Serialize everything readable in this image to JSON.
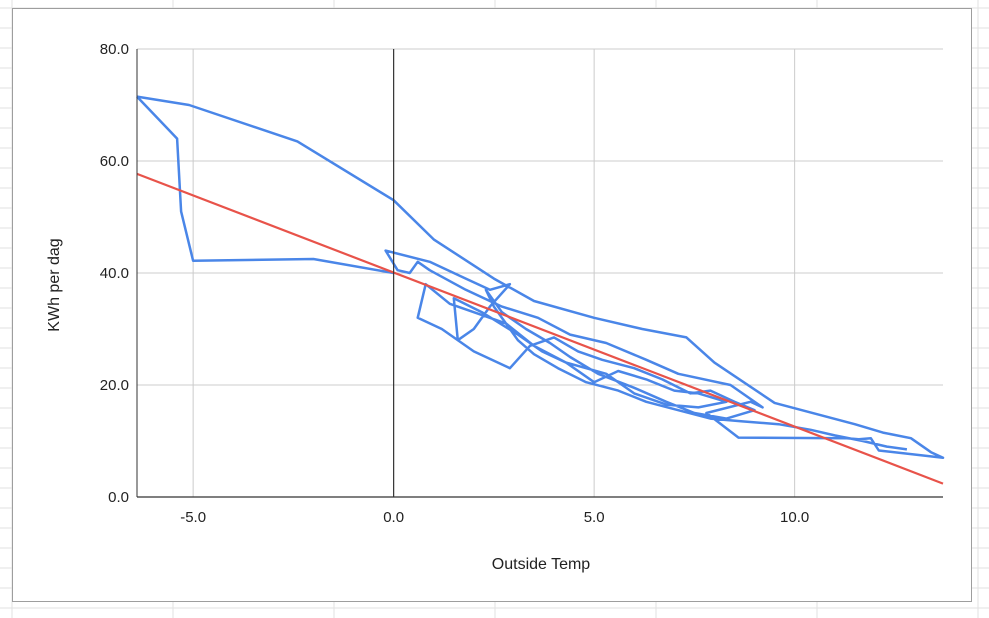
{
  "chart_data": {
    "type": "line",
    "title": "",
    "xlabel": "Outside Temp",
    "ylabel": "KWh per dag",
    "xlim": [
      -6.4,
      13.7
    ],
    "ylim": [
      0,
      80
    ],
    "xticks": [
      -5,
      0,
      5,
      10
    ],
    "yticks": [
      0,
      20,
      40,
      60,
      80
    ],
    "xtick_labels": [
      "-5.0",
      "0.0",
      "5.0",
      "10.0"
    ],
    "ytick_labels": [
      "0.0",
      "20.0",
      "40.0",
      "60.0",
      "80.0"
    ],
    "grid": true,
    "legend": "none",
    "series": [
      {
        "color": "#4a86e8",
        "x": [
          -6.4,
          -5.1,
          -2.4,
          0.0,
          1.0,
          2.5,
          3.5,
          5.0,
          6.2,
          7.3,
          8.0,
          9.5,
          11.5,
          12.2,
          12.9,
          13.4,
          13.7,
          12.1,
          11.9,
          11.6,
          11.3,
          8.6,
          7.8,
          8.9,
          9.2,
          8.4,
          7.1,
          6.3,
          5.3,
          4.4,
          3.6,
          2.7,
          1.8,
          0.9,
          0.6,
          0.4,
          0.1,
          -0.2,
          0.9,
          1.8,
          2.4,
          2.9,
          2.4,
          2.0,
          1.6,
          1.5,
          2.2,
          3.1,
          3.7,
          4.3,
          5.0,
          5.6,
          6.3,
          7.0,
          7.6,
          8.3,
          7.6,
          6.8,
          6.0,
          5.3,
          4.3,
          3.5,
          2.8,
          2.0,
          1.4,
          0.8,
          0.6,
          1.2,
          2.0,
          2.9,
          3.4,
          4.0,
          4.6,
          5.2,
          6.0,
          6.7,
          7.4,
          7.9,
          8.5,
          9.0,
          8.3,
          7.5,
          6.8,
          6.0,
          5.1,
          4.4,
          3.9,
          3.3,
          2.7,
          2.3,
          2.5,
          2.8,
          3.1,
          3.5,
          4.1,
          4.8,
          5.6,
          6.3,
          7.1,
          7.9,
          8.7,
          9.6,
          10.4,
          11.0,
          11.7,
          12.3,
          12.8
        ],
        "y": [
          71.5,
          70.0,
          63.5,
          53.0,
          46.0,
          39.0,
          35.0,
          32.0,
          30.0,
          28.5,
          24.0,
          16.8,
          13.0,
          11.5,
          10.5,
          8.0,
          7.0,
          8.3,
          10.5,
          10.3,
          10.5,
          10.6,
          15.0,
          17.0,
          16.0,
          20.0,
          22.0,
          24.5,
          27.5,
          29.0,
          32.0,
          34.0,
          37.0,
          40.5,
          42.0,
          40.0,
          40.5,
          44.0,
          42.0,
          39.0,
          37.0,
          38.0,
          34.0,
          30.0,
          28.0,
          35.5,
          33.0,
          29.0,
          26.0,
          24.0,
          20.5,
          22.5,
          21.0,
          19.0,
          18.5,
          17.0,
          16.0,
          16.5,
          18.5,
          22.0,
          24.0,
          27.0,
          31.0,
          33.0,
          34.5,
          38.0,
          32.0,
          30.0,
          26.0,
          23.0,
          27.0,
          28.5,
          26.0,
          24.5,
          23.0,
          21.0,
          18.5,
          19.0,
          17.0,
          15.5,
          14.0,
          15.0,
          17.0,
          19.5,
          22.0,
          25.0,
          27.5,
          30.0,
          33.0,
          37.0,
          34.0,
          31.0,
          28.0,
          25.5,
          23.0,
          20.5,
          19.0,
          17.0,
          15.5,
          14.0,
          13.5,
          13.0,
          12.0,
          11.0,
          10.0,
          9.0,
          8.5
        ]
      },
      {
        "color": "#e8534a",
        "x": [
          -6.4,
          13.7
        ],
        "y": [
          57.7,
          2.4
        ]
      }
    ],
    "loop_annotation_points": {
      "x": [
        -6.4,
        -5.4,
        -5.3,
        -5.0,
        -2.0,
        0.0
      ],
      "y": [
        71.5,
        64.0,
        51.0,
        42.2,
        42.5,
        40.0
      ]
    }
  }
}
